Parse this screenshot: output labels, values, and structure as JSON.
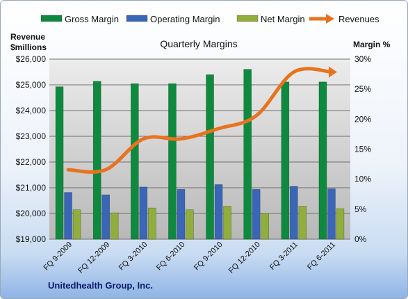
{
  "chart_data": {
    "type": "bar",
    "title": "Quarterly Margins",
    "footer": "Unitedhealth Group, Inc.",
    "left_axis_label": [
      "Revenue",
      "$millions"
    ],
    "right_axis_label": "Margin %",
    "categories": [
      "FQ 9-2009",
      "FQ 12-2009",
      "FQ 3-2010",
      "FQ 6-2010",
      "FQ 9-2010",
      "FQ 12-2010",
      "FQ 3-2011",
      "FQ 6-2011"
    ],
    "left_axis": {
      "min": 19000,
      "max": 26000,
      "ticks": [
        "$19,000",
        "$20,000",
        "$21,000",
        "$22,000",
        "$23,000",
        "$24,000",
        "$25,000",
        "$26,000"
      ]
    },
    "right_axis": {
      "min": 0,
      "max": 30,
      "ticks": [
        "0%",
        "5%",
        "10%",
        "15%",
        "20%",
        "25%",
        "30%"
      ]
    },
    "series": [
      {
        "name": "Gross Margin",
        "kind": "bar",
        "axis": "right",
        "color": "#0e8a3e",
        "values": [
          25.4,
          26.3,
          25.9,
          25.9,
          27.4,
          28.3,
          26.2,
          26.2
        ]
      },
      {
        "name": "Operating Margin",
        "kind": "bar",
        "axis": "right",
        "color": "#3a66b8",
        "values": [
          7.8,
          7.4,
          8.7,
          8.3,
          9.1,
          8.3,
          8.8,
          8.4
        ]
      },
      {
        "name": "Net Margin",
        "kind": "bar",
        "axis": "right",
        "color": "#8fae3c",
        "values": [
          4.9,
          4.4,
          5.2,
          4.9,
          5.5,
          4.3,
          5.5,
          5.1
        ]
      },
      {
        "name": "Revenues",
        "kind": "line",
        "axis": "left",
        "color": "#e8731e",
        "values": [
          21700,
          21700,
          22900,
          22900,
          23300,
          23800,
          25500,
          25500
        ]
      }
    ],
    "grid": true,
    "legend_position": "top"
  }
}
